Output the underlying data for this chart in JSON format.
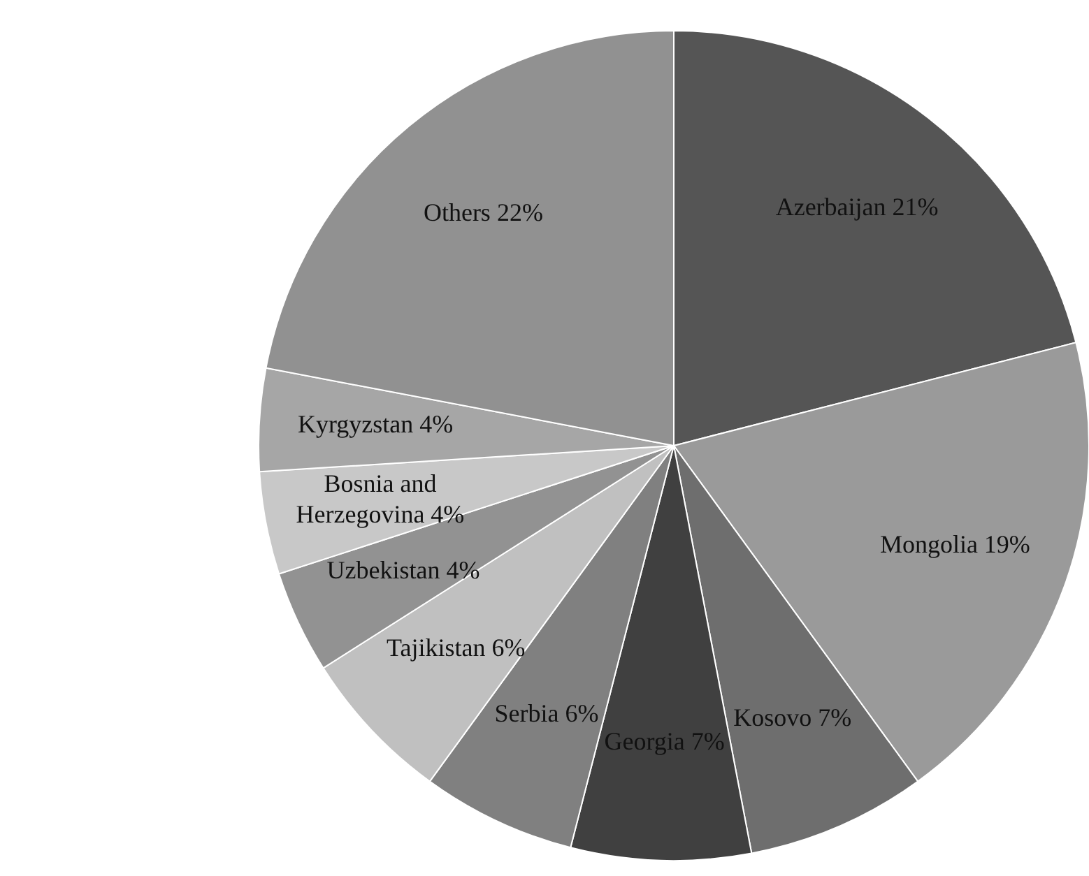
{
  "chart_data": {
    "type": "pie",
    "categories": [
      "Azerbaijan",
      "Mongolia",
      "Kosovo",
      "Georgia",
      "Serbia",
      "Tajikistan",
      "Uzbekistan",
      "Bosnia and Herzegovina",
      "Kyrgyzstan",
      "Others"
    ],
    "values": [
      21,
      19,
      7,
      7,
      6,
      6,
      4,
      4,
      4,
      22
    ],
    "value_labels": [
      "21%",
      "19%",
      "7%",
      "7%",
      "6%",
      "6%",
      "4%",
      "4%",
      "4%",
      "22%"
    ],
    "colors": [
      "#555555",
      "#9a9a9a",
      "#6e6e6e",
      "#404040",
      "#808080",
      "#c0c0c0",
      "#929292",
      "#c8c8c8",
      "#a6a6a6",
      "#919191"
    ]
  }
}
